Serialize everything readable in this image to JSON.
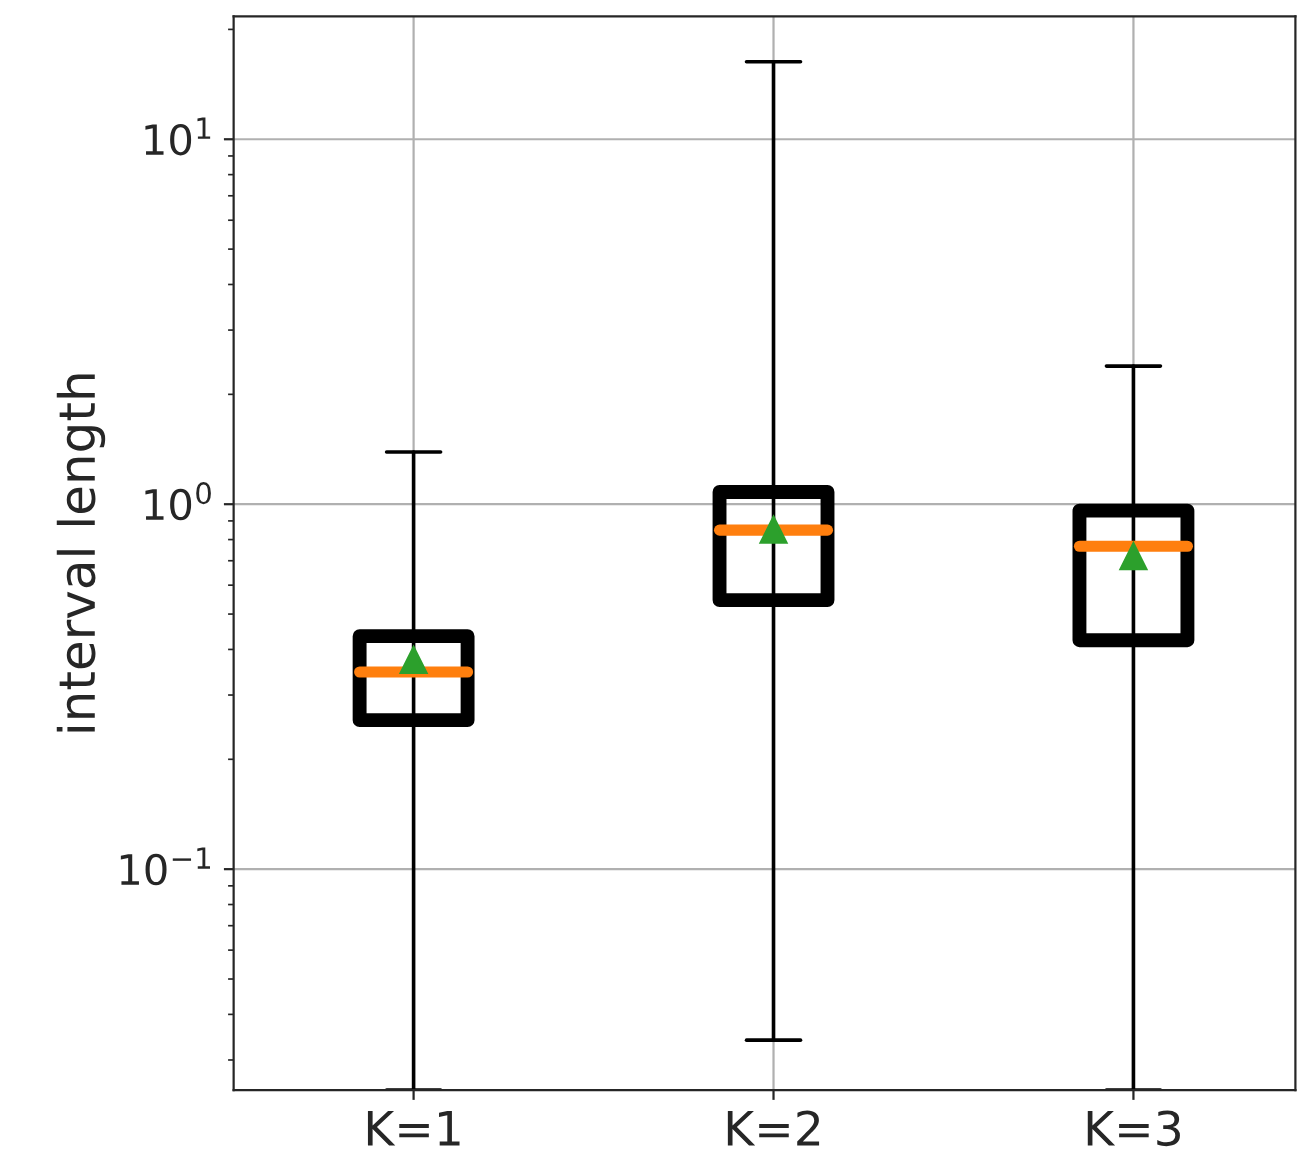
{
  "chart_data": {
    "type": "box",
    "ylabel": "interval length",
    "categories": [
      "K=1",
      "K=2",
      "K=3"
    ],
    "boxes": [
      {
        "low": 0.0248,
        "q1": 0.256,
        "median": 0.347,
        "q3": 0.435,
        "high": 1.39,
        "mean": 0.374
      },
      {
        "low": 0.034,
        "q1": 0.546,
        "median": 0.849,
        "q3": 1.08,
        "high": 16.3,
        "mean": 0.85
      },
      {
        "low": 0.0248,
        "q1": 0.424,
        "median": 0.767,
        "q3": 0.96,
        "high": 2.39,
        "mean": 0.72
      }
    ],
    "log": "y",
    "ylim": [
      0.0248,
      21.7
    ],
    "yticks": [
      {
        "value": 0.1,
        "label": "10$^{−1}$"
      },
      {
        "value": 1,
        "label": "10$^{0}$"
      },
      {
        "value": 10,
        "label": "10$^{1}$"
      }
    ],
    "grid": true,
    "marker": "triangle"
  }
}
